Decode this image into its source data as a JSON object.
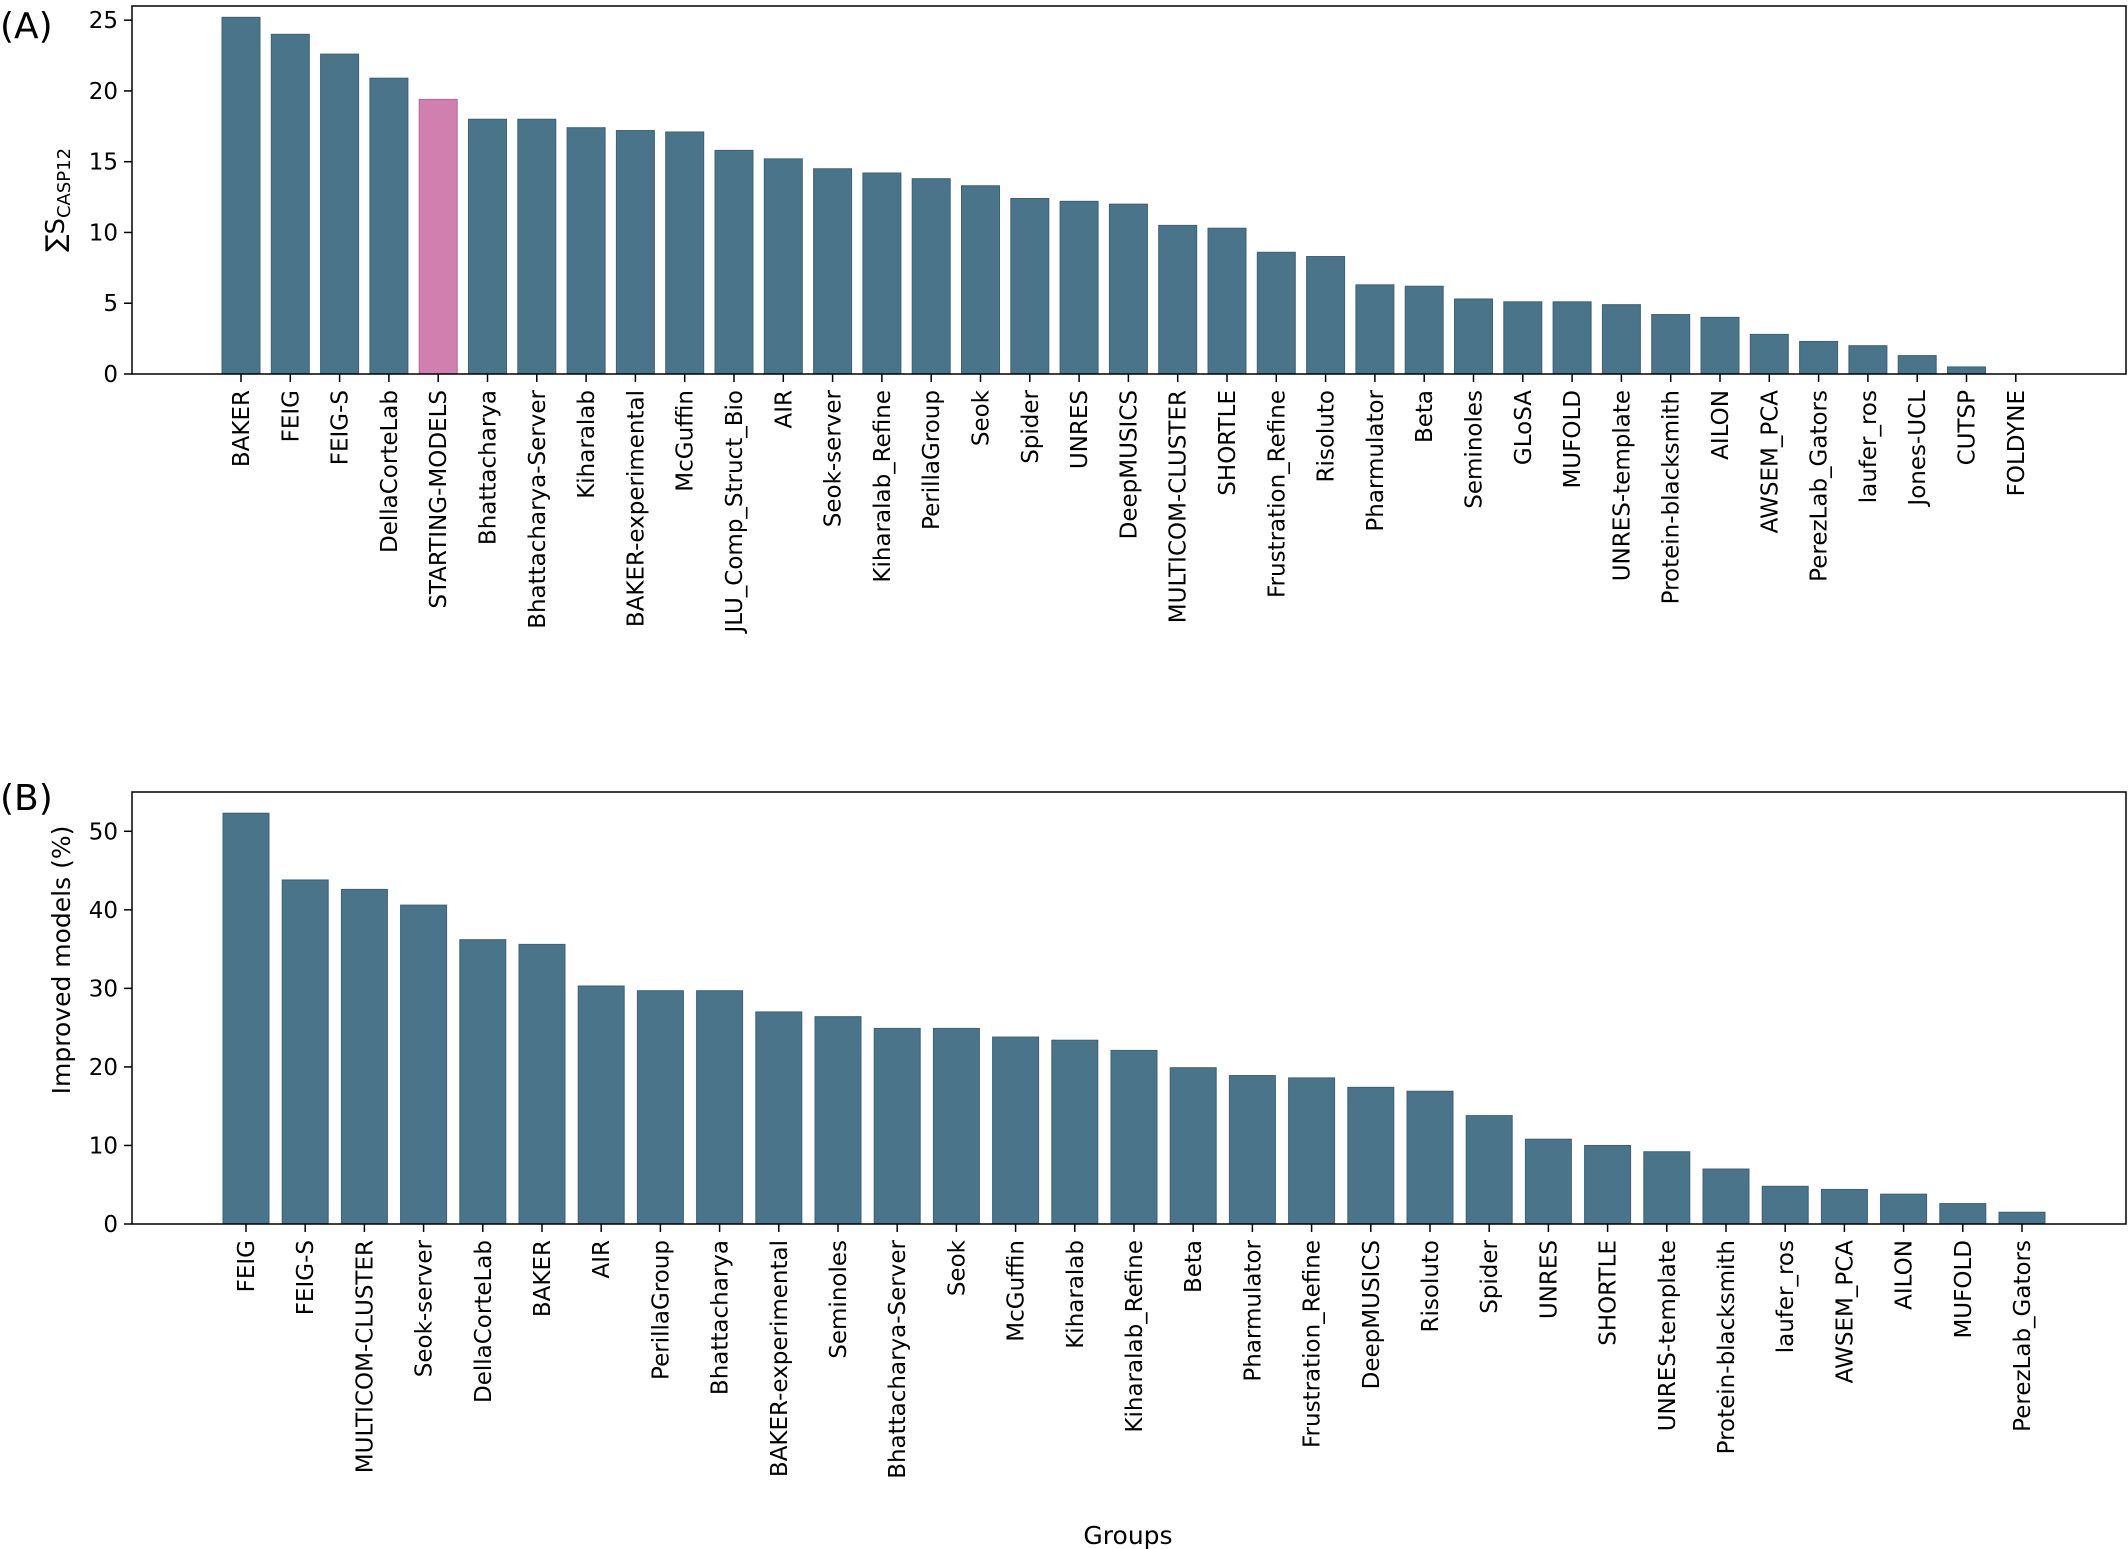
{
  "figure": {
    "bar_color": "#4a7489",
    "highlight_color": "#d07fae"
  },
  "chart_data": [
    {
      "type": "bar",
      "panel_label": "(A)",
      "ylabel_main": "∑S",
      "ylabel_sub": "CASP12",
      "xlabel": "",
      "ylim": [
        0,
        26
      ],
      "yticks": [
        0,
        5,
        10,
        15,
        20,
        25
      ],
      "highlight": [
        "STARTING-MODELS"
      ],
      "categories": [
        "BAKER",
        "FEIG",
        "FEIG-S",
        "DellaCorteLab",
        "STARTING-MODELS",
        "Bhattacharya",
        "Bhattacharya-Server",
        "Kiharalab",
        "BAKER-experimental",
        "McGuffin",
        "JLU_Comp_Struct_Bio",
        "AIR",
        "Seok-server",
        "Kiharalab_Refine",
        "PerillaGroup",
        "Seok",
        "Spider",
        "UNRES",
        "DeepMUSICS",
        "MULTICOM-CLUSTER",
        "SHORTLE",
        "Frustration_Refine",
        "Risoluto",
        "Pharmulator",
        "Beta",
        "Seminoles",
        "GLoSA",
        "MUFOLD",
        "UNRES-template",
        "Protein-blacksmith",
        "AILON",
        "AWSEM_PCA",
        "PerezLab_Gators",
        "laufer_ros",
        "Jones-UCL",
        "CUTSP",
        "FOLDYNE"
      ],
      "values": [
        25.2,
        24.0,
        22.6,
        20.9,
        19.4,
        18.0,
        18.0,
        17.4,
        17.2,
        17.1,
        15.8,
        15.2,
        14.5,
        14.2,
        13.8,
        13.3,
        12.4,
        12.2,
        12.0,
        10.5,
        10.3,
        8.6,
        8.3,
        6.3,
        6.2,
        5.3,
        5.1,
        5.1,
        4.9,
        4.2,
        4.0,
        2.8,
        2.3,
        2.0,
        1.3,
        0.5,
        0.0
      ]
    },
    {
      "type": "bar",
      "panel_label": "(B)",
      "ylabel": "Improved models (%)",
      "xlabel": "Groups",
      "ylim": [
        0,
        55
      ],
      "yticks": [
        0,
        10,
        20,
        30,
        40,
        50
      ],
      "highlight": [],
      "categories": [
        "FEIG",
        "FEIG-S",
        "MULTICOM-CLUSTER",
        "Seok-server",
        "DellaCorteLab",
        "BAKER",
        "AIR",
        "PerillaGroup",
        "Bhattacharya",
        "BAKER-experimental",
        "Seminoles",
        "Bhattacharya-Server",
        "Seok",
        "McGuffin",
        "Kiharalab",
        "Kiharalab_Refine",
        "Beta",
        "Pharmulator",
        "Frustration_Refine",
        "DeepMUSICS",
        "Risoluto",
        "Spider",
        "UNRES",
        "SHORTLE",
        "UNRES-template",
        "Protein-blacksmith",
        "laufer_ros",
        "AWSEM_PCA",
        "AILON",
        "MUFOLD",
        "PerezLab_Gators"
      ],
      "values": [
        52.3,
        43.8,
        42.6,
        40.6,
        36.2,
        35.6,
        30.3,
        29.7,
        29.7,
        27.0,
        26.4,
        24.9,
        24.9,
        23.8,
        23.4,
        22.1,
        19.9,
        18.9,
        18.6,
        17.4,
        16.9,
        13.8,
        10.8,
        10.0,
        9.2,
        7.0,
        4.8,
        4.4,
        3.8,
        2.6,
        1.5
      ]
    }
  ]
}
